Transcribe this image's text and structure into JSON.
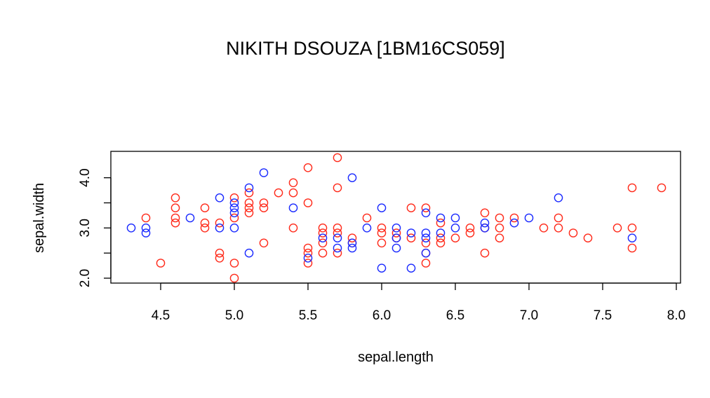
{
  "chart_data": {
    "type": "scatter",
    "title": "NIKITH DSOUZA [1BM16CS059]",
    "xlabel": "sepal.length",
    "ylabel": "sepal.width",
    "xlim": [
      4.3,
      7.9
    ],
    "ylim": [
      2.0,
      4.4
    ],
    "x_ticks": [
      "4.5",
      "5.0",
      "5.5",
      "6.0",
      "6.5",
      "7.0",
      "7.5",
      "8.0"
    ],
    "y_ticks": [
      "2.0",
      "3.0",
      "4.0"
    ],
    "grid": false,
    "legend": "none",
    "marker": "open-circle",
    "series": [
      {
        "color": "#ff2a1a",
        "points": [
          [
            4.4,
            3.2
          ],
          [
            4.5,
            2.3
          ],
          [
            4.6,
            3.6
          ],
          [
            4.6,
            3.4
          ],
          [
            4.6,
            3.2
          ],
          [
            4.6,
            3.1
          ],
          [
            4.8,
            3.4
          ],
          [
            4.8,
            3.1
          ],
          [
            4.8,
            3.0
          ],
          [
            4.9,
            2.5
          ],
          [
            4.9,
            2.4
          ],
          [
            4.9,
            3.1
          ],
          [
            5.0,
            3.6
          ],
          [
            5.0,
            3.2
          ],
          [
            5.0,
            2.3
          ],
          [
            5.0,
            2.0
          ],
          [
            5.1,
            3.7
          ],
          [
            5.1,
            3.5
          ],
          [
            5.1,
            3.4
          ],
          [
            5.1,
            3.3
          ],
          [
            5.2,
            3.5
          ],
          [
            5.2,
            3.4
          ],
          [
            5.2,
            2.7
          ],
          [
            5.3,
            3.7
          ],
          [
            5.4,
            3.9
          ],
          [
            5.4,
            3.7
          ],
          [
            5.4,
            3.0
          ],
          [
            5.5,
            4.2
          ],
          [
            5.5,
            3.5
          ],
          [
            5.5,
            2.6
          ],
          [
            5.5,
            2.5
          ],
          [
            5.5,
            2.3
          ],
          [
            5.6,
            3.0
          ],
          [
            5.6,
            2.9
          ],
          [
            5.6,
            2.7
          ],
          [
            5.6,
            2.5
          ],
          [
            5.7,
            4.4
          ],
          [
            5.7,
            3.8
          ],
          [
            5.7,
            3.0
          ],
          [
            5.7,
            2.9
          ],
          [
            5.7,
            2.5
          ],
          [
            5.8,
            2.8
          ],
          [
            5.8,
            2.7
          ],
          [
            5.9,
            3.2
          ],
          [
            6.0,
            3.0
          ],
          [
            6.0,
            2.9
          ],
          [
            6.0,
            2.7
          ],
          [
            6.1,
            2.9
          ],
          [
            6.1,
            2.8
          ],
          [
            6.2,
            3.4
          ],
          [
            6.2,
            2.8
          ],
          [
            6.3,
            3.4
          ],
          [
            6.3,
            2.7
          ],
          [
            6.3,
            2.5
          ],
          [
            6.3,
            2.3
          ],
          [
            6.4,
            3.1
          ],
          [
            6.4,
            2.8
          ],
          [
            6.4,
            2.7
          ],
          [
            6.5,
            2.8
          ],
          [
            6.6,
            3.0
          ],
          [
            6.6,
            2.9
          ],
          [
            6.7,
            3.3
          ],
          [
            6.7,
            3.0
          ],
          [
            6.7,
            2.5
          ],
          [
            6.8,
            3.2
          ],
          [
            6.8,
            3.0
          ],
          [
            6.8,
            2.8
          ],
          [
            6.9,
            3.2
          ],
          [
            7.1,
            3.0
          ],
          [
            7.2,
            3.2
          ],
          [
            7.2,
            3.0
          ],
          [
            7.3,
            2.9
          ],
          [
            7.4,
            2.8
          ],
          [
            7.6,
            3.0
          ],
          [
            7.7,
            3.8
          ],
          [
            7.7,
            3.0
          ],
          [
            7.7,
            2.6
          ],
          [
            7.9,
            3.8
          ]
        ]
      },
      {
        "color": "#1a2aff",
        "points": [
          [
            4.3,
            3.0
          ],
          [
            4.4,
            3.0
          ],
          [
            4.4,
            2.9
          ],
          [
            4.7,
            3.2
          ],
          [
            4.9,
            3.6
          ],
          [
            4.9,
            3.0
          ],
          [
            5.0,
            3.5
          ],
          [
            5.0,
            3.4
          ],
          [
            5.0,
            3.3
          ],
          [
            5.0,
            3.0
          ],
          [
            5.1,
            3.8
          ],
          [
            5.1,
            2.5
          ],
          [
            5.2,
            4.1
          ],
          [
            5.4,
            3.4
          ],
          [
            5.5,
            2.4
          ],
          [
            5.6,
            2.8
          ],
          [
            5.7,
            2.8
          ],
          [
            5.7,
            2.6
          ],
          [
            5.8,
            4.0
          ],
          [
            5.8,
            2.7
          ],
          [
            5.8,
            2.6
          ],
          [
            5.9,
            3.0
          ],
          [
            6.0,
            3.4
          ],
          [
            6.0,
            2.2
          ],
          [
            6.1,
            3.0
          ],
          [
            6.1,
            2.8
          ],
          [
            6.1,
            2.6
          ],
          [
            6.2,
            2.9
          ],
          [
            6.2,
            2.2
          ],
          [
            6.3,
            3.3
          ],
          [
            6.3,
            2.9
          ],
          [
            6.3,
            2.8
          ],
          [
            6.3,
            2.5
          ],
          [
            6.4,
            3.2
          ],
          [
            6.4,
            2.9
          ],
          [
            6.5,
            3.2
          ],
          [
            6.5,
            3.0
          ],
          [
            6.7,
            3.1
          ],
          [
            6.7,
            3.0
          ],
          [
            6.9,
            3.1
          ],
          [
            7.0,
            3.2
          ],
          [
            7.2,
            3.6
          ],
          [
            7.7,
            2.8
          ]
        ]
      }
    ]
  }
}
